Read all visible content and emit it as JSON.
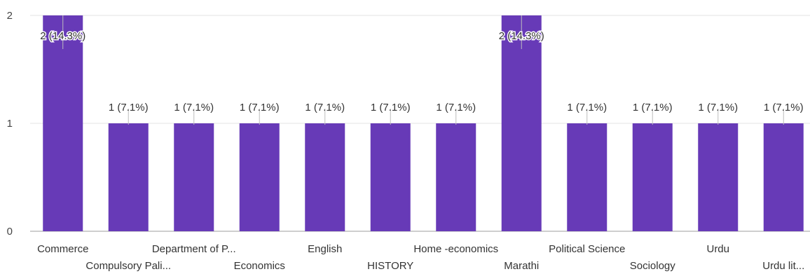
{
  "chart_data": {
    "type": "bar",
    "categories": [
      "Commerce",
      "Compulsory Pali...",
      "Department of P...",
      "Economics",
      "English",
      "HISTORY",
      "Home -economics",
      "Marathi",
      "Political Science",
      "Sociology",
      "Urdu",
      "Urdu lit..."
    ],
    "values": [
      2,
      1,
      1,
      1,
      1,
      1,
      1,
      2,
      1,
      1,
      1,
      1
    ],
    "data_labels": [
      "2 (14.3%)",
      "1 (7.1%)",
      "1 (7.1%)",
      "1 (7.1%)",
      "1 (7.1%)",
      "1 (7.1%)",
      "1 (7.1%)",
      "2 (14.3%)",
      "1 (7.1%)",
      "1 (7.1%)",
      "1 (7.1%)",
      "1 (7.1%)"
    ],
    "y_ticks": [
      "0",
      "1",
      "2"
    ],
    "ylim": [
      0,
      2
    ],
    "grid": true,
    "bar_color": "#673ab7"
  }
}
